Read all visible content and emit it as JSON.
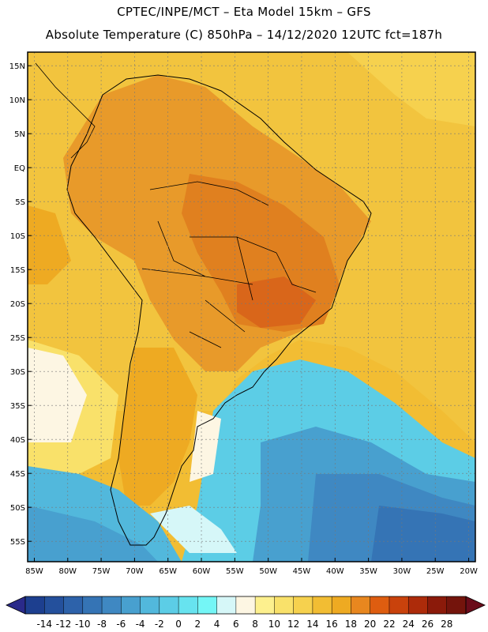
{
  "header": {
    "line1": "CPTEC/INPE/MCT –  Eta Model 15km – GFS",
    "line2": "Absolute Temperature (C) 850hPa – 14/12/2020 12UTC fct=187h"
  },
  "axes": {
    "lat_labels": [
      "15N",
      "10N",
      "5N",
      "EQ",
      "5S",
      "10S",
      "15S",
      "20S",
      "25S",
      "30S",
      "35S",
      "40S",
      "45S",
      "50S",
      "55S"
    ],
    "lat_values": [
      15,
      10,
      5,
      0,
      -5,
      -10,
      -15,
      -20,
      -25,
      -30,
      -35,
      -40,
      -45,
      -50,
      -55
    ],
    "lon_labels": [
      "85W",
      "80W",
      "75W",
      "70W",
      "65W",
      "60W",
      "55W",
      "50W",
      "45W",
      "40W",
      "35W",
      "30W",
      "25W",
      "20W"
    ],
    "lon_values": [
      -85,
      -80,
      -75,
      -70,
      -65,
      -60,
      -55,
      -50,
      -45,
      -40,
      -35,
      -30,
      -25,
      -20
    ],
    "lat_range": [
      -58,
      17
    ],
    "lon_range": [
      -86,
      -19
    ]
  },
  "colorbar": {
    "labels": [
      "-14",
      "-12",
      "-10",
      "-8",
      "-6",
      "-4",
      "-2",
      "0",
      "2",
      "4",
      "6",
      "8",
      "10",
      "12",
      "14",
      "16",
      "18",
      "20",
      "22",
      "24",
      "26",
      "28"
    ],
    "colors": [
      "#1d3f8f",
      "#24509c",
      "#2d62aa",
      "#3574b5",
      "#3f88c2",
      "#48a0cf",
      "#52b8dc",
      "#5ccde6",
      "#67e3ef",
      "#74f6f6",
      "#d6f7f8",
      "#fdf6e3",
      "#fdf08e",
      "#f9e16a",
      "#f6d14e",
      "#f2bd33",
      "#eeaa22",
      "#e8871f",
      "#de5d10",
      "#c9420c",
      "#ad2b0a",
      "#8b1a0a",
      "#74140c"
    ],
    "below_color": "#2a2a8a",
    "above_color": "#6a0c1a"
  },
  "colors": {
    "land_warm": "#e89a2a",
    "land_hot": "#e0801f",
    "ocean_warm": "#f2bd33",
    "ocean_cool": "#5ccde6",
    "ocean_cold": "#3574b5",
    "grid": "#777777"
  }
}
